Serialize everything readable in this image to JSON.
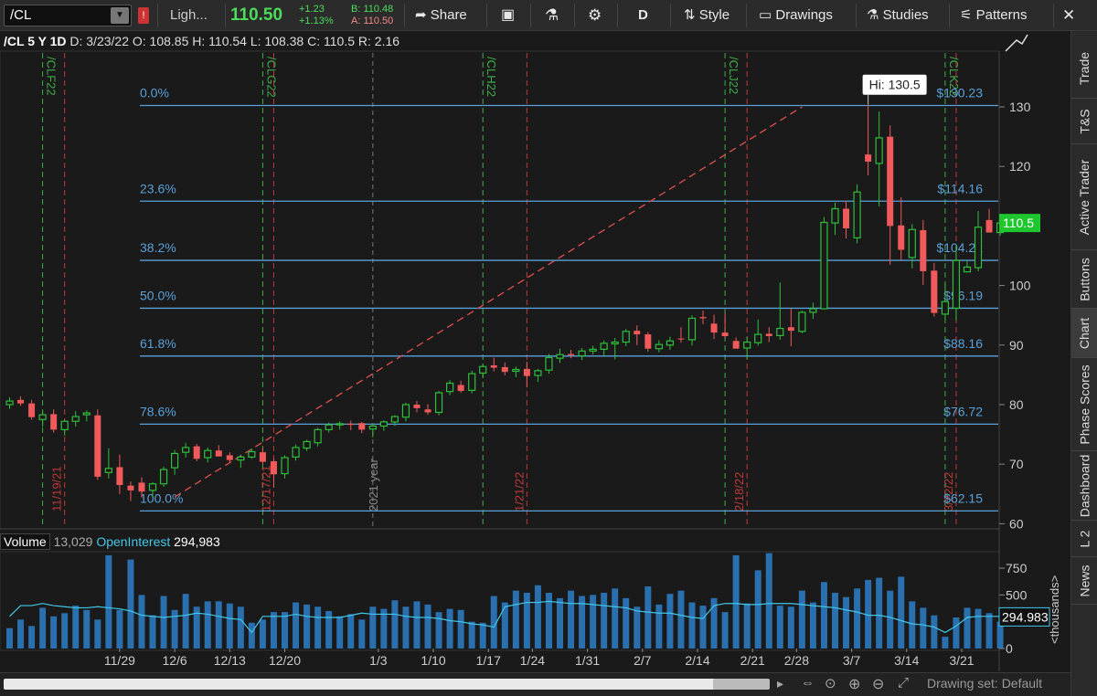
{
  "toolbar": {
    "symbol": "/CL",
    "alert_flag": "!",
    "theme_label": "Ligh...",
    "last_price": "110.50",
    "net_change": "+1.23",
    "pct_change": "+1.13%",
    "bid": "B: 110.48",
    "ask": "A: 110.50",
    "share_label": "Share",
    "period_label": "D",
    "style_label": "Style",
    "drawings_label": "Drawings",
    "studies_label": "Studies",
    "patterns_label": "Patterns"
  },
  "infobar": {
    "symbol_period": "/CL 5 Y 1D",
    "date": "D: 3/23/22",
    "open": "O: 108.85",
    "high": "H: 110.54",
    "low": "L: 108.38",
    "close": "C: 110.5",
    "range": "R: 2.16"
  },
  "sidebar": {
    "tabs": [
      "Trade",
      "T&S",
      "Active Trader",
      "Buttons",
      "Chart",
      "Phase Scores",
      "Dashboard",
      "L 2",
      "News"
    ],
    "active": "Chart"
  },
  "volume_header": {
    "volume_label": "Volume",
    "volume_value": "13,029",
    "oi_label": "OpenInterest",
    "oi_value": "294,983"
  },
  "bottombar": {
    "drawing_set": "Drawing set: Default"
  },
  "colors": {
    "up": "#2fbf3a",
    "down": "#f05a5a",
    "fib": "#5aa0d8",
    "volume": "#2a6fae",
    "oi": "#42c8e8",
    "price_tag": "#1fc72e"
  },
  "chart_data": {
    "type": "candlestick",
    "price_axis": {
      "min": 60,
      "max": 135,
      "ticks": [
        60,
        70,
        80,
        90,
        100,
        110,
        120,
        130
      ]
    },
    "last_price_tag": "110.5",
    "hi_label": "Hi: 130.5",
    "fib_levels": [
      {
        "pct": "0.0%",
        "price": 130.23,
        "label": "$130.23"
      },
      {
        "pct": "23.6%",
        "price": 114.16,
        "label": "$114.16"
      },
      {
        "pct": "38.2%",
        "price": 104.22,
        "label": "$104.22"
      },
      {
        "pct": "50.0%",
        "price": 96.19,
        "label": "$96.19"
      },
      {
        "pct": "61.8%",
        "price": 88.16,
        "label": "$88.16"
      },
      {
        "pct": "78.6%",
        "price": 76.72,
        "label": "$76.72"
      },
      {
        "pct": "100.0%",
        "price": 62.15,
        "label": "$62.15"
      }
    ],
    "trendline": {
      "from": {
        "bar": 15,
        "price": 64.5
      },
      "to": {
        "bar": 72,
        "price": 130
      }
    },
    "expiry_markers": [
      {
        "bar": 3,
        "label": "/CLF22"
      },
      {
        "bar": 23,
        "label": "/CLG22"
      },
      {
        "bar": 43,
        "label": "/CLH22"
      },
      {
        "bar": 65,
        "label": "/CLJ22"
      },
      {
        "bar": 85,
        "label": "/CLK22"
      }
    ],
    "date_markers": [
      {
        "bar": 5,
        "label": "11/19/21"
      },
      {
        "bar": 24,
        "label": "12/17/21"
      },
      {
        "bar": 47,
        "label": "1/21/22"
      },
      {
        "bar": 67,
        "label": "2/18/22"
      },
      {
        "bar": 86,
        "label": "3/22/22"
      }
    ],
    "year_marker": {
      "bar": 33,
      "label": "2021 year"
    },
    "x_ticks": [
      {
        "bar": 10,
        "label": "11/29"
      },
      {
        "bar": 15,
        "label": "12/6"
      },
      {
        "bar": 20,
        "label": "12/13"
      },
      {
        "bar": 25,
        "label": "12/20"
      },
      {
        "bar": 33.5,
        "label": "1/3"
      },
      {
        "bar": 38.5,
        "label": "1/10"
      },
      {
        "bar": 43.5,
        "label": "1/17"
      },
      {
        "bar": 47.5,
        "label": "1/24"
      },
      {
        "bar": 52.5,
        "label": "1/31"
      },
      {
        "bar": 57.5,
        "label": "2/7"
      },
      {
        "bar": 62.5,
        "label": "2/14"
      },
      {
        "bar": 67.5,
        "label": "2/21"
      },
      {
        "bar": 71.5,
        "label": "2/28"
      },
      {
        "bar": 76.5,
        "label": "3/7"
      },
      {
        "bar": 81.5,
        "label": "3/14"
      },
      {
        "bar": 86.5,
        "label": "3/21"
      }
    ],
    "volume_axis": {
      "min": 0,
      "max": 900,
      "ticks": [
        0,
        250,
        500,
        750
      ],
      "unit_label": "<thousands>"
    },
    "oi_tag": "294.983",
    "candles": [
      {
        "o": 80.0,
        "h": 81.2,
        "l": 79.3,
        "c": 80.6
      },
      {
        "o": 80.8,
        "h": 81.4,
        "l": 79.8,
        "c": 80.2
      },
      {
        "o": 80.2,
        "h": 80.8,
        "l": 77.5,
        "c": 77.9
      },
      {
        "o": 77.5,
        "h": 78.9,
        "l": 76.3,
        "c": 78.3
      },
      {
        "o": 78.4,
        "h": 79.2,
        "l": 75.3,
        "c": 75.8
      },
      {
        "o": 75.8,
        "h": 77.5,
        "l": 74.8,
        "c": 77.2
      },
      {
        "o": 77.2,
        "h": 78.9,
        "l": 76.3,
        "c": 78.0
      },
      {
        "o": 78.3,
        "h": 79.0,
        "l": 77.2,
        "c": 78.6
      },
      {
        "o": 78.2,
        "h": 79.2,
        "l": 67.4,
        "c": 67.9
      },
      {
        "o": 68.6,
        "h": 72.7,
        "l": 67.6,
        "c": 69.3
      },
      {
        "o": 69.5,
        "h": 71.6,
        "l": 65.0,
        "c": 66.5
      },
      {
        "o": 66.4,
        "h": 67.1,
        "l": 63.8,
        "c": 65.6
      },
      {
        "o": 66.9,
        "h": 67.8,
        "l": 64.4,
        "c": 65.4
      },
      {
        "o": 65.6,
        "h": 67.0,
        "l": 64.5,
        "c": 66.7
      },
      {
        "o": 66.7,
        "h": 69.6,
        "l": 66.2,
        "c": 69.1
      },
      {
        "o": 69.4,
        "h": 72.4,
        "l": 68.2,
        "c": 71.8
      },
      {
        "o": 72.0,
        "h": 73.6,
        "l": 71.1,
        "c": 72.8
      },
      {
        "o": 73.0,
        "h": 73.4,
        "l": 70.5,
        "c": 70.9
      },
      {
        "o": 71.1,
        "h": 72.8,
        "l": 70.3,
        "c": 72.3
      },
      {
        "o": 72.3,
        "h": 73.2,
        "l": 71.4,
        "c": 71.3
      },
      {
        "o": 71.5,
        "h": 72.0,
        "l": 70.3,
        "c": 70.7
      },
      {
        "o": 70.7,
        "h": 71.6,
        "l": 69.4,
        "c": 71.2
      },
      {
        "o": 71.2,
        "h": 72.6,
        "l": 70.9,
        "c": 72.1
      },
      {
        "o": 72.0,
        "h": 72.7,
        "l": 70.0,
        "c": 70.4
      },
      {
        "o": 70.5,
        "h": 70.9,
        "l": 66.1,
        "c": 68.3
      },
      {
        "o": 68.4,
        "h": 71.5,
        "l": 67.6,
        "c": 71.1
      },
      {
        "o": 71.2,
        "h": 73.3,
        "l": 70.6,
        "c": 72.8
      },
      {
        "o": 72.7,
        "h": 74.1,
        "l": 72.2,
        "c": 73.8
      },
      {
        "o": 73.6,
        "h": 76.1,
        "l": 73.0,
        "c": 75.8
      },
      {
        "o": 75.8,
        "h": 77.0,
        "l": 75.3,
        "c": 76.6
      },
      {
        "o": 76.6,
        "h": 77.2,
        "l": 75.8,
        "c": 76.8
      },
      {
        "o": 76.8,
        "h": 77.3,
        "l": 75.7,
        "c": 76.6
      },
      {
        "o": 76.9,
        "h": 77.1,
        "l": 75.2,
        "c": 75.8
      },
      {
        "o": 75.9,
        "h": 76.8,
        "l": 74.5,
        "c": 76.4
      },
      {
        "o": 76.4,
        "h": 77.4,
        "l": 75.6,
        "c": 77.1
      },
      {
        "o": 77.1,
        "h": 78.2,
        "l": 76.4,
        "c": 78.0
      },
      {
        "o": 77.9,
        "h": 80.3,
        "l": 77.2,
        "c": 80.0
      },
      {
        "o": 80.0,
        "h": 80.6,
        "l": 78.7,
        "c": 79.4
      },
      {
        "o": 79.2,
        "h": 80.1,
        "l": 78.3,
        "c": 78.7
      },
      {
        "o": 78.7,
        "h": 82.3,
        "l": 78.2,
        "c": 82.0
      },
      {
        "o": 82.2,
        "h": 84.1,
        "l": 81.6,
        "c": 83.6
      },
      {
        "o": 83.3,
        "h": 84.0,
        "l": 82.0,
        "c": 82.3
      },
      {
        "o": 82.4,
        "h": 85.7,
        "l": 81.9,
        "c": 85.2
      },
      {
        "o": 85.3,
        "h": 86.8,
        "l": 84.5,
        "c": 86.4
      },
      {
        "o": 86.6,
        "h": 87.9,
        "l": 85.6,
        "c": 86.2
      },
      {
        "o": 86.3,
        "h": 87.1,
        "l": 84.9,
        "c": 85.5
      },
      {
        "o": 85.6,
        "h": 86.4,
        "l": 84.6,
        "c": 85.9
      },
      {
        "o": 86.0,
        "h": 87.2,
        "l": 82.9,
        "c": 84.8
      },
      {
        "o": 84.9,
        "h": 86.0,
        "l": 83.8,
        "c": 85.7
      },
      {
        "o": 85.8,
        "h": 88.5,
        "l": 85.2,
        "c": 87.9
      },
      {
        "o": 87.8,
        "h": 89.4,
        "l": 87.0,
        "c": 88.4
      },
      {
        "o": 88.5,
        "h": 89.2,
        "l": 87.8,
        "c": 88.3
      },
      {
        "o": 88.2,
        "h": 89.5,
        "l": 87.5,
        "c": 89.0
      },
      {
        "o": 89.0,
        "h": 89.9,
        "l": 88.4,
        "c": 89.3
      },
      {
        "o": 89.3,
        "h": 90.8,
        "l": 88.2,
        "c": 90.3
      },
      {
        "o": 90.2,
        "h": 91.2,
        "l": 87.6,
        "c": 90.5
      },
      {
        "o": 90.5,
        "h": 92.7,
        "l": 89.8,
        "c": 92.3
      },
      {
        "o": 92.4,
        "h": 93.3,
        "l": 90.0,
        "c": 91.8
      },
      {
        "o": 91.8,
        "h": 92.2,
        "l": 88.9,
        "c": 89.4
      },
      {
        "o": 89.4,
        "h": 90.8,
        "l": 88.8,
        "c": 90.1
      },
      {
        "o": 90.0,
        "h": 91.4,
        "l": 89.2,
        "c": 90.7
      },
      {
        "o": 91.1,
        "h": 93.0,
        "l": 90.4,
        "c": 91.0
      },
      {
        "o": 90.9,
        "h": 95.0,
        "l": 89.9,
        "c": 94.5
      },
      {
        "o": 94.7,
        "h": 95.8,
        "l": 93.5,
        "c": 94.5
      },
      {
        "o": 93.6,
        "h": 95.1,
        "l": 91.0,
        "c": 92.1
      },
      {
        "o": 92.1,
        "h": 95.3,
        "l": 91.1,
        "c": 91.5
      },
      {
        "o": 90.7,
        "h": 91.3,
        "l": 89.8,
        "c": 89.4
      },
      {
        "o": 89.5,
        "h": 91.4,
        "l": 87.6,
        "c": 90.5
      },
      {
        "o": 90.4,
        "h": 94.3,
        "l": 89.9,
        "c": 91.8
      },
      {
        "o": 91.9,
        "h": 93.0,
        "l": 90.5,
        "c": 91.5
      },
      {
        "o": 91.6,
        "h": 100.5,
        "l": 90.9,
        "c": 92.8
      },
      {
        "o": 93.0,
        "h": 96.1,
        "l": 89.8,
        "c": 92.4
      },
      {
        "o": 92.3,
        "h": 95.8,
        "l": 92.0,
        "c": 95.5
      },
      {
        "o": 95.5,
        "h": 97.1,
        "l": 94.4,
        "c": 96.1
      },
      {
        "o": 96.1,
        "h": 111.5,
        "l": 96.0,
        "c": 110.6
      },
      {
        "o": 110.5,
        "h": 113.9,
        "l": 108.5,
        "c": 112.9
      },
      {
        "o": 112.9,
        "h": 114.2,
        "l": 107.9,
        "c": 109.6
      },
      {
        "o": 108.0,
        "h": 117.0,
        "l": 107.1,
        "c": 115.7
      },
      {
        "o": 122.0,
        "h": 130.5,
        "l": 118.5,
        "c": 120.8
      },
      {
        "o": 120.5,
        "h": 129.2,
        "l": 113.3,
        "c": 124.8
      },
      {
        "o": 125.0,
        "h": 126.9,
        "l": 103.5,
        "c": 110.0
      },
      {
        "o": 110.1,
        "h": 114.8,
        "l": 104.3,
        "c": 106.0
      },
      {
        "o": 104.7,
        "h": 110.3,
        "l": 102.9,
        "c": 109.4
      },
      {
        "o": 109.3,
        "h": 111.0,
        "l": 100.1,
        "c": 102.4
      },
      {
        "o": 102.5,
        "h": 103.8,
        "l": 94.8,
        "c": 95.4
      },
      {
        "o": 95.2,
        "h": 100.3,
        "l": 94.3,
        "c": 97.3
      },
      {
        "o": 96.2,
        "h": 106.8,
        "l": 94.1,
        "c": 104.2
      },
      {
        "o": 102.3,
        "h": 104.3,
        "l": 102.2,
        "c": 103.1
      },
      {
        "o": 103.0,
        "h": 112.5,
        "l": 102.4,
        "c": 109.8
      },
      {
        "o": 111.0,
        "h": 112.9,
        "l": 109.3,
        "c": 108.9
      },
      {
        "o": 108.9,
        "h": 110.5,
        "l": 108.4,
        "c": 110.5
      }
    ],
    "volume": [
      190,
      270,
      210,
      380,
      300,
      330,
      400,
      360,
      270,
      870,
      360,
      830,
      500,
      310,
      490,
      360,
      510,
      390,
      440,
      440,
      420,
      390,
      240,
      270,
      340,
      340,
      430,
      410,
      390,
      350,
      300,
      320,
      270,
      390,
      370,
      450,
      390,
      440,
      410,
      340,
      370,
      360,
      250,
      240,
      490,
      430,
      540,
      520,
      590,
      520,
      470,
      540,
      490,
      500,
      520,
      560,
      470,
      390,
      580,
      410,
      510,
      540,
      430,
      400,
      470,
      340,
      870,
      420,
      730,
      890,
      400,
      390,
      540,
      430,
      620,
      520,
      480,
      560,
      640,
      660,
      540,
      670,
      440,
      380,
      310,
      110,
      290,
      380,
      370,
      330,
      250
    ],
    "open_interest": [
      300,
      400,
      400,
      420,
      400,
      390,
      380,
      380,
      390,
      380,
      370,
      350,
      310,
      300,
      290,
      300,
      310,
      330,
      320,
      300,
      280,
      270,
      150,
      300,
      300,
      300,
      320,
      300,
      290,
      290,
      290,
      310,
      330,
      320,
      320,
      320,
      300,
      290,
      290,
      280,
      260,
      250,
      230,
      220,
      200,
      390,
      410,
      430,
      430,
      440,
      430,
      420,
      420,
      410,
      400,
      390,
      380,
      350,
      340,
      330,
      330,
      310,
      290,
      280,
      400,
      420,
      420,
      410,
      410,
      420,
      420,
      420,
      410,
      400,
      390,
      380,
      360,
      340,
      310,
      310,
      290,
      260,
      230,
      220,
      200,
      150,
      210,
      290,
      300,
      300,
      300
    ]
  }
}
